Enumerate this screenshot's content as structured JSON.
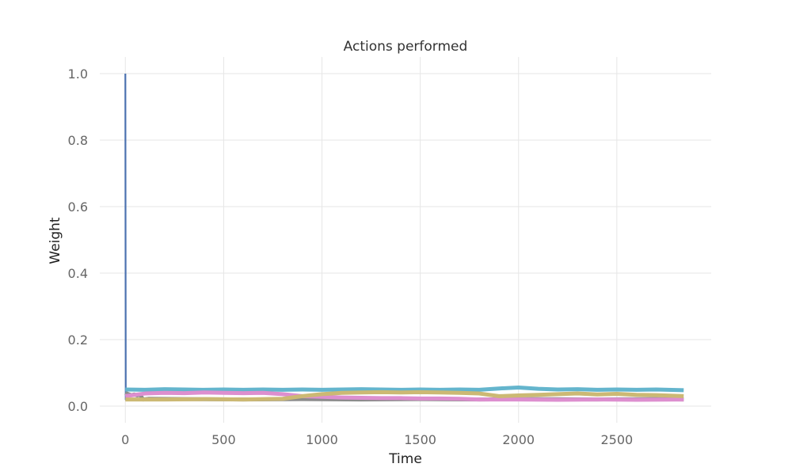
{
  "chart_data": {
    "type": "line",
    "title": "Actions performed",
    "xlabel": "Time",
    "ylabel": "Weight",
    "xlim": [
      -130,
      2980
    ],
    "ylim": [
      -0.05,
      1.05
    ],
    "xticks": [
      0,
      500,
      1000,
      1500,
      2000,
      2500
    ],
    "yticks": [
      0.0,
      0.2,
      0.4,
      0.6,
      0.8,
      1.0
    ],
    "xtick_labels": [
      "0",
      "500",
      "1000",
      "1500",
      "2000",
      "2500"
    ],
    "ytick_labels": [
      "0.0",
      "0.2",
      "0.4",
      "0.6",
      "0.8",
      "1.0"
    ],
    "grid": true,
    "series": [
      {
        "color": "#4c72b0",
        "x": [
          0,
          1,
          2,
          4
        ],
        "y": [
          1.0,
          0.5,
          0.02,
          0.04
        ]
      },
      {
        "color": "#8c8c8c",
        "x": [
          0,
          15,
          30,
          45,
          60,
          75,
          90,
          120,
          300,
          600,
          900,
          1200,
          1500,
          1800,
          2100,
          2400,
          2700,
          2840
        ],
        "y": [
          0.04,
          0.036,
          0.033,
          0.035,
          0.032,
          0.034,
          0.02,
          0.022,
          0.021,
          0.02,
          0.021,
          0.02,
          0.021,
          0.02,
          0.021,
          0.02,
          0.021,
          0.02
        ]
      },
      {
        "color": "#64b5cd",
        "x": [
          0,
          100,
          200,
          300,
          400,
          500,
          600,
          700,
          800,
          900,
          1000,
          1100,
          1200,
          1300,
          1400,
          1500,
          1600,
          1700,
          1800,
          1900,
          2000,
          2100,
          2200,
          2300,
          2400,
          2500,
          2600,
          2700,
          2840
        ],
        "y": [
          0.05,
          0.049,
          0.051,
          0.05,
          0.049,
          0.05,
          0.049,
          0.05,
          0.049,
          0.05,
          0.049,
          0.05,
          0.051,
          0.05,
          0.049,
          0.05,
          0.049,
          0.05,
          0.049,
          0.053,
          0.056,
          0.052,
          0.05,
          0.051,
          0.049,
          0.05,
          0.049,
          0.05,
          0.048
        ]
      },
      {
        "color": "#dd8fcf",
        "x": [
          0,
          100,
          200,
          300,
          400,
          500,
          600,
          700,
          800,
          900,
          1000,
          1100,
          1200,
          1300,
          1400,
          1500,
          1600,
          1700,
          1800,
          2000,
          2200,
          2400,
          2600,
          2840
        ],
        "y": [
          0.03,
          0.038,
          0.04,
          0.039,
          0.041,
          0.04,
          0.039,
          0.04,
          0.036,
          0.03,
          0.028,
          0.026,
          0.025,
          0.024,
          0.024,
          0.023,
          0.023,
          0.022,
          0.02,
          0.02,
          0.019,
          0.02,
          0.019,
          0.02
        ]
      },
      {
        "color": "#ccb974",
        "x": [
          0,
          200,
          400,
          600,
          800,
          900,
          1000,
          1100,
          1200,
          1300,
          1400,
          1500,
          1600,
          1700,
          1800,
          1900,
          2000,
          2100,
          2200,
          2300,
          2400,
          2500,
          2600,
          2700,
          2840
        ],
        "y": [
          0.02,
          0.02,
          0.021,
          0.02,
          0.022,
          0.03,
          0.036,
          0.04,
          0.041,
          0.042,
          0.041,
          0.042,
          0.041,
          0.04,
          0.038,
          0.03,
          0.032,
          0.034,
          0.036,
          0.038,
          0.035,
          0.037,
          0.034,
          0.033,
          0.03
        ]
      }
    ]
  }
}
